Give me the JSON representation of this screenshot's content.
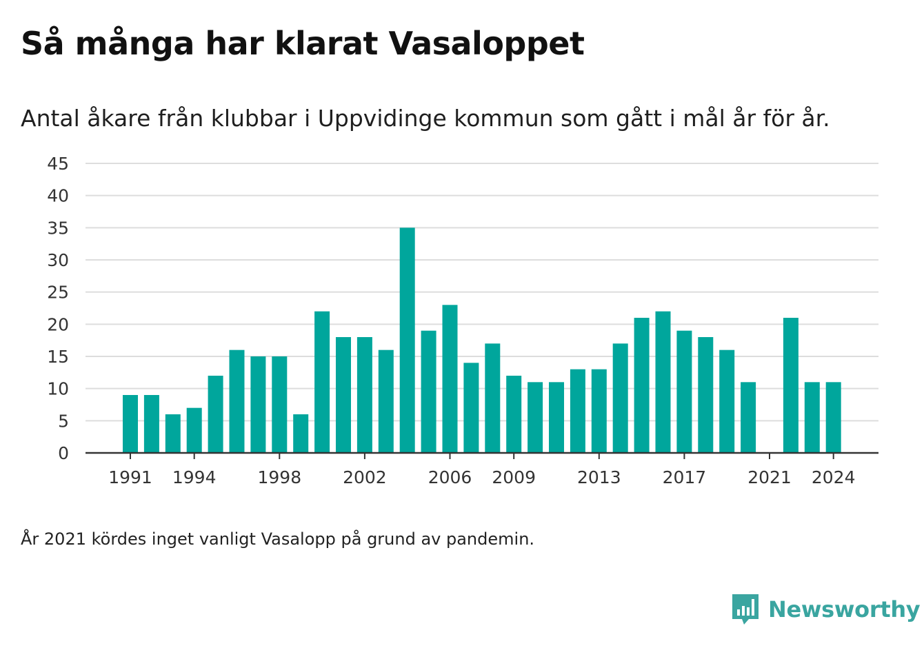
{
  "title": "Så många har klarat Vasaloppet",
  "subtitle": "Antal åkare från klubbar i Uppvidinge kommun som gått i mål år för år.",
  "note": "År 2021 kördes inget vanligt Vasalopp på grund av pandemin.",
  "brand": {
    "name": "Newsworthy",
    "icon": "newsworthy-logo-icon"
  },
  "colors": {
    "bar": "#00a69c",
    "grid": "#dddddd",
    "axis": "#333333",
    "text": "#333333",
    "brand": "#3aa5a0"
  },
  "chart_data": {
    "type": "bar",
    "categories": [
      1991,
      1992,
      1993,
      1994,
      1995,
      1996,
      1997,
      1998,
      1999,
      2000,
      2001,
      2002,
      2003,
      2004,
      2005,
      2006,
      2007,
      2008,
      2009,
      2010,
      2011,
      2012,
      2013,
      2014,
      2015,
      2016,
      2017,
      2018,
      2019,
      2020,
      2021,
      2022,
      2023,
      2024
    ],
    "values": [
      9,
      9,
      6,
      7,
      12,
      16,
      15,
      15,
      6,
      22,
      18,
      18,
      16,
      35,
      19,
      23,
      14,
      17,
      12,
      11,
      11,
      13,
      13,
      17,
      21,
      22,
      19,
      18,
      16,
      11,
      0,
      21,
      11,
      11
    ],
    "x_tick_labels": [
      "1991",
      "1994",
      "1998",
      "2002",
      "2006",
      "2009",
      "2013",
      "2017",
      "2021",
      "2024"
    ],
    "y_ticks": [
      0,
      5,
      10,
      15,
      20,
      25,
      30,
      35,
      40,
      45
    ],
    "ylim": [
      0,
      45
    ],
    "xlabel": "",
    "ylabel": "",
    "grid": true
  }
}
